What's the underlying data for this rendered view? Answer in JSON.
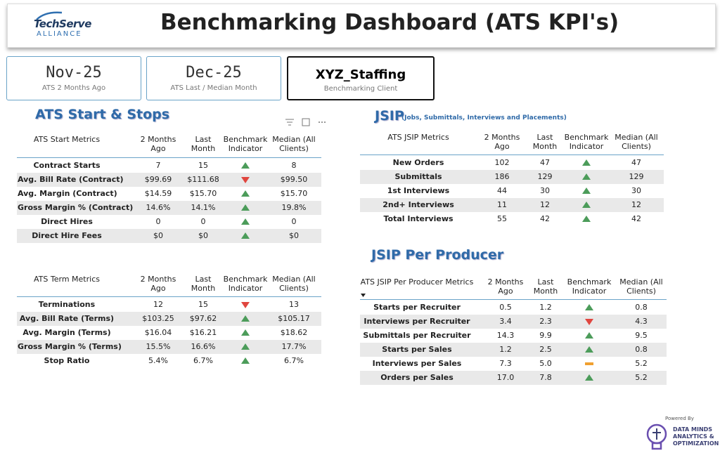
{
  "header": {
    "logo": "TechServe",
    "logo_sub": "ALLIANCE",
    "title": "Benchmarking Dashboard (ATS KPI's)"
  },
  "cards": [
    {
      "title": "Nov-25",
      "subtitle": "ATS 2 Months Ago"
    },
    {
      "title": "Dec-25",
      "subtitle": "ATS Last / Median Month"
    },
    {
      "title": "XYZ_Staffing",
      "subtitle": "Benchmarking Client"
    }
  ],
  "sections": [
    {
      "title": "ATS Start & Stops"
    },
    {
      "title": "JSIP",
      "subtitle": "(Jobs, Submittals, Interviews and Placements)"
    },
    {
      "title": "JSIP Per Producer"
    }
  ],
  "tables": [
    {
      "columns": [
        "ATS Start Metrics",
        "2 Months Ago",
        "Last Month",
        "Benchmark Indicator",
        "Median (All Clients)"
      ],
      "rows": [
        {
          "cells": [
            "Contract Starts",
            "7",
            "15",
            "8"
          ],
          "indicator": "up"
        },
        {
          "cells": [
            "Avg. Bill Rate (Contract)",
            "$99.69",
            "$111.68",
            "$99.50"
          ],
          "indicator": "down"
        },
        {
          "cells": [
            "Avg. Margin (Contract)",
            "$14.59",
            "$15.70",
            "$15.70"
          ],
          "indicator": "up"
        },
        {
          "cells": [
            "Gross Margin % (Contract)",
            "14.6%",
            "14.1%",
            "19.8%"
          ],
          "indicator": "up"
        },
        {
          "cells": [
            "Direct Hires",
            "0",
            "0",
            "0"
          ],
          "indicator": "up"
        },
        {
          "cells": [
            "Direct Hire Fees",
            "$0",
            "$0",
            "$0"
          ],
          "indicator": "up"
        }
      ]
    },
    {
      "columns": [
        "ATS Term Metrics",
        "2 Months Ago",
        "Last Month",
        "Benchmark Indicator",
        "Median (All Clients)"
      ],
      "rows": [
        {
          "cells": [
            "Terminations",
            "12",
            "15",
            "13"
          ],
          "indicator": "down"
        },
        {
          "cells": [
            "Avg. Bill Rate (Terms)",
            "$103.25",
            "$97.62",
            "$105.17"
          ],
          "indicator": "up"
        },
        {
          "cells": [
            "Avg. Margin (Terms)",
            "$16.04",
            "$16.21",
            "$18.62"
          ],
          "indicator": "up"
        },
        {
          "cells": [
            "Gross Margin % (Terms)",
            "15.5%",
            "16.6%",
            "17.7%"
          ],
          "indicator": "up"
        },
        {
          "cells": [
            "Stop Ratio",
            "5.4%",
            "6.7%",
            "6.7%"
          ],
          "indicator": "up"
        }
      ]
    },
    {
      "columns": [
        "ATS JSIP Metrics",
        "2 Months Ago",
        "Last Month",
        "Benchmark Indicator",
        "Median (All Clients)"
      ],
      "rows": [
        {
          "cells": [
            "New Orders",
            "102",
            "47",
            "47"
          ],
          "indicator": "up"
        },
        {
          "cells": [
            "Submittals",
            "186",
            "129",
            "129"
          ],
          "indicator": "up"
        },
        {
          "cells": [
            "1st Interviews",
            "44",
            "30",
            "30"
          ],
          "indicator": "up"
        },
        {
          "cells": [
            "2nd+ Interviews",
            "11",
            "12",
            "12"
          ],
          "indicator": "up"
        },
        {
          "cells": [
            "Total Interviews",
            "55",
            "42",
            "42"
          ],
          "indicator": "up"
        }
      ]
    },
    {
      "columns": [
        "ATS JSIP Per Producer Metrics",
        "2 Months Ago",
        "Last Month",
        "Benchmark Indicator",
        "Median (All Clients)"
      ],
      "rows": [
        {
          "cells": [
            "Starts per Recruiter",
            "0.5",
            "1.2",
            "0.8"
          ],
          "indicator": "up"
        },
        {
          "cells": [
            "Interviews per Recruiter",
            "3.4",
            "2.3",
            "4.3"
          ],
          "indicator": "down"
        },
        {
          "cells": [
            "Submittals per Recruiter",
            "14.3",
            "9.9",
            "9.5"
          ],
          "indicator": "up"
        },
        {
          "cells": [
            "Starts per Sales",
            "1.2",
            "2.5",
            "0.8"
          ],
          "indicator": "up"
        },
        {
          "cells": [
            "Interviews per Sales",
            "7.3",
            "5.0",
            "5.2"
          ],
          "indicator": "flat"
        },
        {
          "cells": [
            "Orders per Sales",
            "17.0",
            "7.8",
            "5.2"
          ],
          "indicator": "up"
        }
      ]
    }
  ],
  "footer": {
    "powered": "Powered By",
    "brand": [
      "DATA MINDS",
      "ANALYTICS &",
      "OPTIMIZATION"
    ]
  }
}
